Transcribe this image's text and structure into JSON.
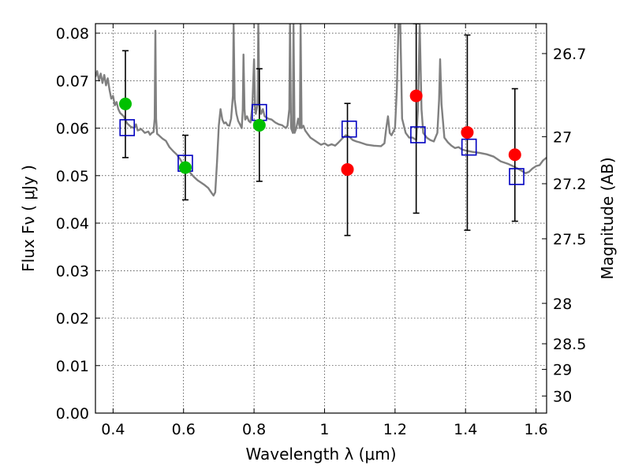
{
  "chart_data": {
    "type": "scatter",
    "xlabel": "Wavelength  λ (μm)",
    "ylabel": "Flux  Fν  ( μJy )",
    "y2label": "Magnitude (AB)",
    "xlim": [
      0.35,
      1.63
    ],
    "ylim": [
      0.0,
      0.082
    ],
    "grid": true,
    "x_ticks": [
      0.4,
      0.6,
      0.8,
      1.0,
      1.2,
      1.4,
      1.6
    ],
    "x_tick_labels": [
      "0.4",
      "0.6",
      "0.8",
      "1",
      "1.2",
      "1.4",
      "1.6"
    ],
    "y_ticks": [
      0.0,
      0.01,
      0.02,
      0.03,
      0.04,
      0.05,
      0.06,
      0.07,
      0.08
    ],
    "y_tick_labels": [
      "0.00",
      "0.01",
      "0.02",
      "0.03",
      "0.04",
      "0.05",
      "0.06",
      "0.07",
      "0.08"
    ],
    "y2_ticks": [
      {
        "label": "26.7",
        "flux": 0.0757
      },
      {
        "label": "27",
        "flux": 0.0582
      },
      {
        "label": "27.2",
        "flux": 0.0483
      },
      {
        "label": "27.5",
        "flux": 0.0367
      },
      {
        "label": "28",
        "flux": 0.0231
      },
      {
        "label": "28.5",
        "flux": 0.0146
      },
      {
        "label": "29",
        "flux": 0.0092
      },
      {
        "label": "30",
        "flux": 0.0036
      }
    ],
    "colors": {
      "model": "#808080",
      "green": "#00c000",
      "red": "#ff0000",
      "square": "#0000c0",
      "errorbar": "#000000"
    },
    "series": [
      {
        "name": "model spectrum",
        "kind": "line",
        "points": [
          [
            0.35,
            0.0708
          ],
          [
            0.355,
            0.072
          ],
          [
            0.36,
            0.07
          ],
          [
            0.365,
            0.0715
          ],
          [
            0.37,
            0.0695
          ],
          [
            0.375,
            0.0712
          ],
          [
            0.38,
            0.069
          ],
          [
            0.385,
            0.0705
          ],
          [
            0.39,
            0.068
          ],
          [
            0.395,
            0.0662
          ],
          [
            0.4,
            0.0668
          ],
          [
            0.405,
            0.0648
          ],
          [
            0.41,
            0.0655
          ],
          [
            0.415,
            0.064
          ],
          [
            0.42,
            0.0632
          ],
          [
            0.43,
            0.0625
          ],
          [
            0.44,
            0.061
          ],
          [
            0.45,
            0.0603
          ],
          [
            0.46,
            0.06
          ],
          [
            0.465,
            0.0608
          ],
          [
            0.47,
            0.0595
          ],
          [
            0.48,
            0.0598
          ],
          [
            0.49,
            0.059
          ],
          [
            0.5,
            0.0593
          ],
          [
            0.505,
            0.0586
          ],
          [
            0.51,
            0.059
          ],
          [
            0.515,
            0.0592
          ],
          [
            0.518,
            0.062
          ],
          [
            0.52,
            0.0805
          ],
          [
            0.522,
            0.062
          ],
          [
            0.525,
            0.0588
          ],
          [
            0.53,
            0.0585
          ],
          [
            0.54,
            0.0578
          ],
          [
            0.55,
            0.0573
          ],
          [
            0.56,
            0.056
          ],
          [
            0.57,
            0.0552
          ],
          [
            0.58,
            0.0545
          ],
          [
            0.59,
            0.0535
          ],
          [
            0.6,
            0.0522
          ],
          [
            0.61,
            0.0515
          ],
          [
            0.62,
            0.0505
          ],
          [
            0.63,
            0.0497
          ],
          [
            0.64,
            0.049
          ],
          [
            0.65,
            0.0485
          ],
          [
            0.66,
            0.048
          ],
          [
            0.67,
            0.0474
          ],
          [
            0.68,
            0.0463
          ],
          [
            0.685,
            0.0458
          ],
          [
            0.69,
            0.0465
          ],
          [
            0.695,
            0.053
          ],
          [
            0.7,
            0.0605
          ],
          [
            0.705,
            0.064
          ],
          [
            0.71,
            0.0618
          ],
          [
            0.715,
            0.061
          ],
          [
            0.72,
            0.0612
          ],
          [
            0.725,
            0.0606
          ],
          [
            0.73,
            0.0605
          ],
          [
            0.735,
            0.062
          ],
          [
            0.74,
            0.0668
          ],
          [
            0.742,
            0.082
          ],
          [
            0.745,
            0.066
          ],
          [
            0.75,
            0.063
          ],
          [
            0.755,
            0.0615
          ],
          [
            0.76,
            0.0608
          ],
          [
            0.765,
            0.06
          ],
          [
            0.768,
            0.064
          ],
          [
            0.77,
            0.0755
          ],
          [
            0.773,
            0.064
          ],
          [
            0.775,
            0.0618
          ],
          [
            0.78,
            0.0625
          ],
          [
            0.785,
            0.0615
          ],
          [
            0.79,
            0.0612
          ],
          [
            0.795,
            0.0645
          ],
          [
            0.8,
            0.0745
          ],
          [
            0.803,
            0.064
          ],
          [
            0.805,
            0.063
          ],
          [
            0.81,
            0.065
          ],
          [
            0.812,
            0.082
          ],
          [
            0.815,
            0.065
          ],
          [
            0.82,
            0.063
          ],
          [
            0.825,
            0.064
          ],
          [
            0.83,
            0.0625
          ],
          [
            0.84,
            0.062
          ],
          [
            0.85,
            0.0618
          ],
          [
            0.86,
            0.0612
          ],
          [
            0.87,
            0.0608
          ],
          [
            0.88,
            0.0606
          ],
          [
            0.89,
            0.06
          ],
          [
            0.895,
            0.0605
          ],
          [
            0.9,
            0.064
          ],
          [
            0.902,
            0.082
          ],
          [
            0.905,
            0.06
          ],
          [
            0.91,
            0.059
          ],
          [
            0.912,
            0.082
          ],
          [
            0.915,
            0.059
          ],
          [
            0.92,
            0.06
          ],
          [
            0.925,
            0.062
          ],
          [
            0.93,
            0.06
          ],
          [
            0.932,
            0.082
          ],
          [
            0.935,
            0.06
          ],
          [
            0.94,
            0.0605
          ],
          [
            0.945,
            0.0595
          ],
          [
            0.95,
            0.059
          ],
          [
            0.96,
            0.058
          ],
          [
            0.97,
            0.0575
          ],
          [
            0.98,
            0.057
          ],
          [
            0.99,
            0.0565
          ],
          [
            1.0,
            0.0568
          ],
          [
            1.01,
            0.0563
          ],
          [
            1.02,
            0.0566
          ],
          [
            1.03,
            0.0563
          ],
          [
            1.04,
            0.057
          ],
          [
            1.05,
            0.0578
          ],
          [
            1.06,
            0.0585
          ],
          [
            1.07,
            0.0582
          ],
          [
            1.08,
            0.0575
          ],
          [
            1.09,
            0.0572
          ],
          [
            1.1,
            0.057
          ],
          [
            1.12,
            0.0565
          ],
          [
            1.14,
            0.0563
          ],
          [
            1.16,
            0.0562
          ],
          [
            1.17,
            0.0568
          ],
          [
            1.175,
            0.06
          ],
          [
            1.18,
            0.0625
          ],
          [
            1.185,
            0.059
          ],
          [
            1.19,
            0.0585
          ],
          [
            1.2,
            0.06
          ],
          [
            1.205,
            0.068
          ],
          [
            1.21,
            0.082
          ],
          [
            1.215,
            0.082
          ],
          [
            1.22,
            0.062
          ],
          [
            1.23,
            0.059
          ],
          [
            1.24,
            0.058
          ],
          [
            1.25,
            0.058
          ],
          [
            1.26,
            0.0575
          ],
          [
            1.265,
            0.064
          ],
          [
            1.27,
            0.082
          ],
          [
            1.275,
            0.064
          ],
          [
            1.28,
            0.059
          ],
          [
            1.29,
            0.058
          ],
          [
            1.3,
            0.0575
          ],
          [
            1.31,
            0.0572
          ],
          [
            1.32,
            0.059
          ],
          [
            1.325,
            0.066
          ],
          [
            1.328,
            0.0745
          ],
          [
            1.332,
            0.065
          ],
          [
            1.34,
            0.058
          ],
          [
            1.35,
            0.057
          ],
          [
            1.36,
            0.0563
          ],
          [
            1.37,
            0.0558
          ],
          [
            1.38,
            0.056
          ],
          [
            1.39,
            0.0555
          ],
          [
            1.4,
            0.0553
          ],
          [
            1.42,
            0.055
          ],
          [
            1.44,
            0.0548
          ],
          [
            1.46,
            0.0545
          ],
          [
            1.48,
            0.054
          ],
          [
            1.5,
            0.053
          ],
          [
            1.52,
            0.0525
          ],
          [
            1.54,
            0.0518
          ],
          [
            1.56,
            0.051
          ],
          [
            1.57,
            0.0505
          ],
          [
            1.58,
            0.0508
          ],
          [
            1.59,
            0.0515
          ],
          [
            1.6,
            0.052
          ],
          [
            1.61,
            0.0522
          ],
          [
            1.62,
            0.0532
          ],
          [
            1.63,
            0.0538
          ]
        ]
      },
      {
        "name": "green points",
        "kind": "circle",
        "color": "green",
        "points": [
          [
            0.435,
            0.0651
          ],
          [
            0.605,
            0.0517
          ],
          [
            0.815,
            0.0606
          ]
        ]
      },
      {
        "name": "red points",
        "kind": "circle",
        "color": "red",
        "points": [
          [
            1.065,
            0.0513
          ],
          [
            1.26,
            0.0668
          ],
          [
            1.405,
            0.0591
          ],
          [
            1.54,
            0.0544
          ]
        ]
      },
      {
        "name": "synthetic photometry",
        "kind": "square",
        "color": "square",
        "points": [
          [
            0.44,
            0.0601
          ],
          [
            0.605,
            0.0526
          ],
          [
            0.815,
            0.0633
          ],
          [
            1.07,
            0.0598
          ],
          [
            1.265,
            0.0586
          ],
          [
            1.41,
            0.056
          ],
          [
            1.545,
            0.0498
          ]
        ]
      },
      {
        "name": "error bars",
        "kind": "errorbar",
        "color": "errorbar",
        "bars": [
          {
            "x": 0.435,
            "low": 0.0538,
            "high": 0.0763
          },
          {
            "x": 0.605,
            "low": 0.0449,
            "high": 0.0585
          },
          {
            "x": 0.815,
            "low": 0.0488,
            "high": 0.0725
          },
          {
            "x": 1.065,
            "low": 0.0374,
            "high": 0.0652
          },
          {
            "x": 1.26,
            "low": 0.0421,
            "high": 0.082
          },
          {
            "x": 1.405,
            "low": 0.0385,
            "high": 0.0796
          },
          {
            "x": 1.54,
            "low": 0.0404,
            "high": 0.0683
          }
        ]
      }
    ]
  }
}
